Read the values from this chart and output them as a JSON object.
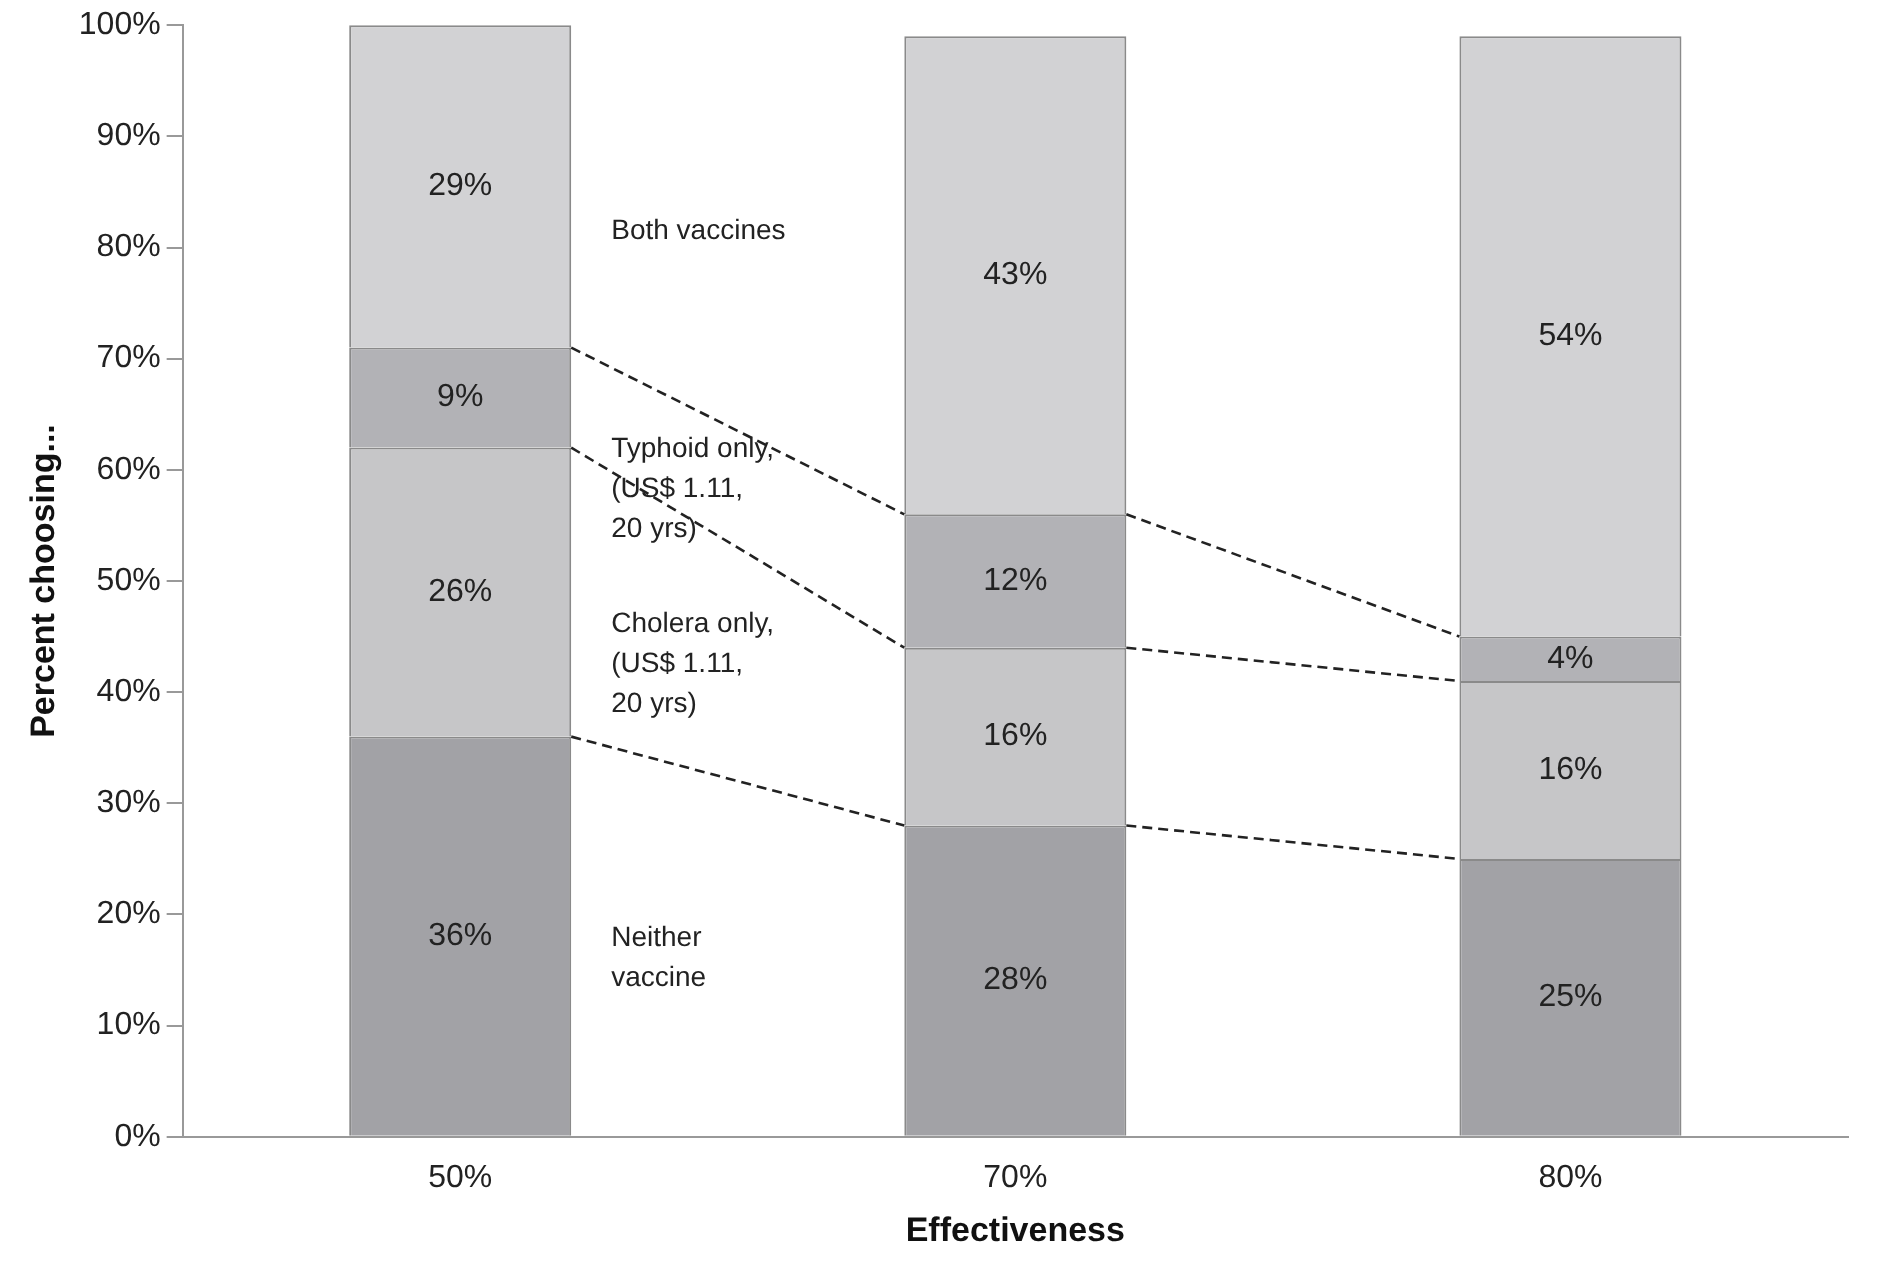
{
  "chart_data": {
    "type": "bar",
    "stacked": true,
    "xlabel": "Effectiveness",
    "ylabel": "Percent choosing...",
    "categories": [
      "50%",
      "70%",
      "80%"
    ],
    "series": [
      {
        "name": "Neither vaccine",
        "color": "#a2a2a6",
        "values": [
          36,
          28,
          25
        ],
        "value_labels": [
          "36%",
          "28%",
          "25%"
        ]
      },
      {
        "name": "Cholera only, (US$ 1.11, 20 yrs)",
        "color": "#c6c6c8",
        "values": [
          26,
          16,
          16
        ],
        "value_labels": [
          "26%",
          "16%",
          "16%"
        ]
      },
      {
        "name": "Typhoid only, (US$ 1.11, 20 yrs)",
        "color": "#b2b2b6",
        "values": [
          9,
          12,
          4
        ],
        "value_labels": [
          "9%",
          "12%",
          "4%"
        ]
      },
      {
        "name": "Both vaccines",
        "color": "#d2d2d4",
        "values": [
          29,
          43,
          54
        ],
        "value_labels": [
          "29%",
          "43%",
          "54%"
        ]
      }
    ],
    "ylim": [
      0,
      100
    ],
    "yticks": [
      {
        "value": 0,
        "label": "0%"
      },
      {
        "value": 10,
        "label": "10%"
      },
      {
        "value": 20,
        "label": "20%"
      },
      {
        "value": 30,
        "label": "30%"
      },
      {
        "value": 40,
        "label": "40%"
      },
      {
        "value": 50,
        "label": "50%"
      },
      {
        "value": 60,
        "label": "60%"
      },
      {
        "value": 70,
        "label": "70%"
      },
      {
        "value": 80,
        "label": "80%"
      },
      {
        "value": 90,
        "label": "90%"
      },
      {
        "value": 100,
        "label": "100%"
      }
    ],
    "grid": false,
    "legend": false
  }
}
